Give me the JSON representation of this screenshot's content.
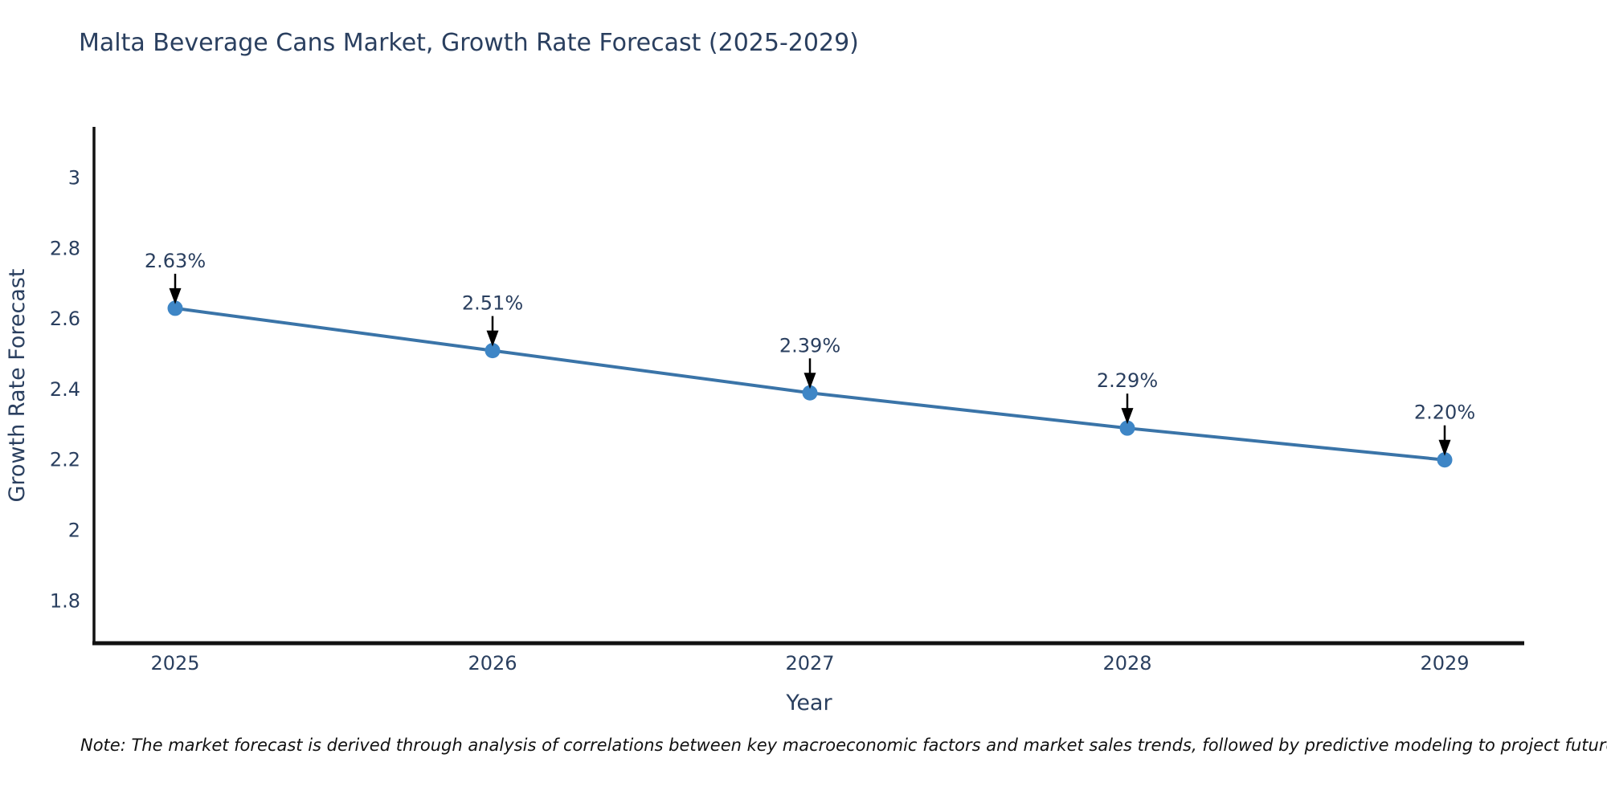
{
  "title": "Malta Beverage Cans Market, Growth Rate Forecast (2025-2029)",
  "note": "Note: The market forecast is derived through analysis of correlations between key macroeconomic factors and market sales trends, followed by predictive modeling to project future sales",
  "chart_data": {
    "type": "line",
    "title": "Malta Beverage Cans Market, Growth Rate Forecast (2025-2029)",
    "xlabel": "Year",
    "ylabel": "Growth Rate Forecast",
    "x": [
      2025,
      2026,
      2027,
      2028,
      2029
    ],
    "series": [
      {
        "name": "Growth Rate Forecast",
        "values": [
          2.63,
          2.51,
          2.39,
          2.29,
          2.2
        ]
      }
    ],
    "point_labels": [
      "2.63%",
      "2.51%",
      "2.39%",
      "2.29%",
      "2.20%"
    ],
    "yticks": [
      "1.8",
      "2",
      "2.2",
      "2.4",
      "2.6",
      "2.8",
      "3"
    ],
    "xticks": [
      "2025",
      "2026",
      "2027",
      "2028",
      "2029"
    ],
    "ylim": [
      1.68,
      3.14
    ],
    "grid": false,
    "legend": "none",
    "annotations": "black arrows pointing down from percentage labels to each data point",
    "colors": {
      "line": "#3a74a8",
      "marker": "#3e86c6",
      "axis": "#111111",
      "text": "#2a3f5f",
      "arrow": "#000000",
      "background": "#ffffff"
    }
  }
}
